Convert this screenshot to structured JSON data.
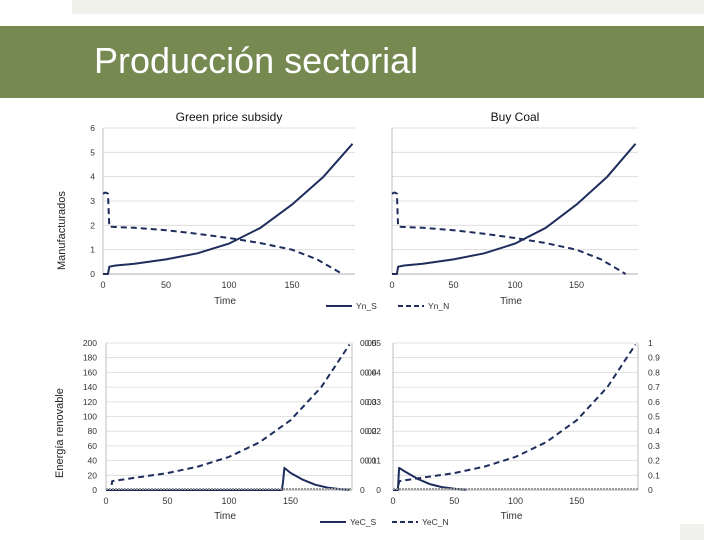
{
  "slide": {
    "title": "Producción sectorial",
    "row_labels": {
      "top": "Manufacturados",
      "bottom": "Energía renovable"
    }
  },
  "colors": {
    "banner": "#768950",
    "series": "#1f2d5c",
    "grid": "#d9d9d9",
    "axis": "#bfbfbf",
    "top_strip": "#f1f1ec"
  },
  "chart_data": [
    {
      "id": "gps-top",
      "type": "line",
      "title": "Green price subsidy",
      "xlabel": "Time",
      "ylabel": "",
      "xlim": [
        0,
        200
      ],
      "ylim": [
        0,
        6
      ],
      "xticks": [
        "0",
        "50",
        "100",
        "150"
      ],
      "yticks": [
        "0",
        "1",
        "2",
        "3",
        "4",
        "5",
        "6"
      ],
      "series": [
        {
          "name": "Yn_S",
          "style": "solid",
          "x": [
            0,
            4,
            5,
            10,
            25,
            50,
            75,
            100,
            125,
            150,
            175,
            198
          ],
          "y": [
            0,
            0,
            0.3,
            0.35,
            0.42,
            0.6,
            0.85,
            1.25,
            1.9,
            2.85,
            4.0,
            5.35
          ]
        },
        {
          "name": "Yn_N",
          "style": "dashed",
          "x": [
            0,
            2,
            4,
            5,
            10,
            25,
            50,
            75,
            100,
            125,
            150,
            170,
            190
          ],
          "y": [
            3.3,
            3.35,
            3.3,
            1.95,
            1.93,
            1.9,
            1.8,
            1.65,
            1.48,
            1.27,
            1.0,
            0.6,
            0.0
          ]
        }
      ]
    },
    {
      "id": "bc-top",
      "type": "line",
      "title": "Buy Coal",
      "xlabel": "Time",
      "ylabel": "",
      "xlim": [
        0,
        200
      ],
      "ylim": [
        0,
        6
      ],
      "xticks": [
        "0",
        "50",
        "100",
        "150"
      ],
      "yticks": [],
      "series": [
        {
          "name": "Yn_S",
          "style": "solid",
          "x": [
            0,
            4,
            5,
            10,
            25,
            50,
            75,
            100,
            125,
            150,
            175,
            198
          ],
          "y": [
            0,
            0,
            0.3,
            0.35,
            0.42,
            0.6,
            0.85,
            1.25,
            1.9,
            2.85,
            4.0,
            5.35
          ]
        },
        {
          "name": "Yn_N",
          "style": "dashed",
          "x": [
            0,
            2,
            4,
            5,
            10,
            25,
            50,
            75,
            100,
            125,
            150,
            170,
            190
          ],
          "y": [
            3.3,
            3.35,
            3.3,
            1.95,
            1.93,
            1.9,
            1.8,
            1.65,
            1.48,
            1.27,
            1.0,
            0.6,
            0.0
          ]
        }
      ]
    },
    {
      "id": "gps-bottom",
      "type": "line",
      "title": "",
      "xlabel": "Time",
      "ylabel": "",
      "xlim": [
        0,
        200
      ],
      "ylim": [
        0,
        200
      ],
      "y2lim": [
        0,
        0.05
      ],
      "xticks": [
        "0",
        "50",
        "100",
        "150"
      ],
      "yticks": [
        "0",
        "20",
        "40",
        "60",
        "80",
        "100",
        "120",
        "140",
        "160",
        "180",
        "200"
      ],
      "y2ticks": [
        "0",
        "0.01",
        "0.02",
        "0.03",
        "0.04",
        "0.05"
      ],
      "series": [
        {
          "name": "YeC_S",
          "style": "solid",
          "axis": "right",
          "x": [
            0,
            143,
            144,
            145,
            150,
            160,
            170,
            180,
            190,
            198
          ],
          "y": [
            0,
            0,
            0.003,
            0.0075,
            0.0058,
            0.0035,
            0.0018,
            0.0008,
            0.0003,
            0.0001
          ]
        },
        {
          "name": "YeC_N",
          "style": "dashed",
          "axis": "left",
          "x": [
            0,
            4,
            5,
            25,
            50,
            75,
            100,
            125,
            150,
            175,
            198
          ],
          "y": [
            0,
            0,
            12,
            17,
            23,
            32,
            45,
            65,
            95,
            140,
            198
          ]
        }
      ]
    },
    {
      "id": "bc-bottom",
      "type": "line",
      "title": "",
      "xlabel": "Time",
      "ylabel": "",
      "xlim": [
        0,
        200
      ],
      "ylim": [
        0,
        0.05
      ],
      "y2lim": [
        0,
        1
      ],
      "xticks": [
        "0",
        "50",
        "100",
        "150"
      ],
      "yticks": [
        "0",
        "0.01",
        "0.02",
        "0.03",
        "0.04",
        "0.05"
      ],
      "y2ticks": [
        "0",
        "0.1",
        "0.2",
        "0.3",
        "0.4",
        "0.5",
        "0.6",
        "0.7",
        "0.8",
        "0.9",
        "1"
      ],
      "series": [
        {
          "name": "YeC_S",
          "style": "solid",
          "axis": "left",
          "x": [
            0,
            4,
            5,
            10,
            20,
            30,
            40,
            50,
            60
          ],
          "y": [
            0,
            0,
            0.0075,
            0.0062,
            0.0038,
            0.002,
            0.001,
            0.0004,
            0.0001
          ]
        },
        {
          "name": "YeC_N",
          "style": "dashed",
          "axis": "right",
          "x": [
            0,
            4,
            5,
            25,
            50,
            75,
            100,
            125,
            150,
            175,
            198
          ],
          "y": [
            0,
            0,
            0.06,
            0.085,
            0.115,
            0.16,
            0.225,
            0.325,
            0.475,
            0.7,
            0.99
          ]
        }
      ]
    }
  ],
  "legends": {
    "top": [
      {
        "label": "Yn_S",
        "style": "solid"
      },
      {
        "label": "Yn_N",
        "style": "dashed"
      }
    ],
    "bottom": [
      {
        "label": "YeC_S",
        "style": "solid"
      },
      {
        "label": "YeC_N",
        "style": "dashed"
      }
    ]
  }
}
